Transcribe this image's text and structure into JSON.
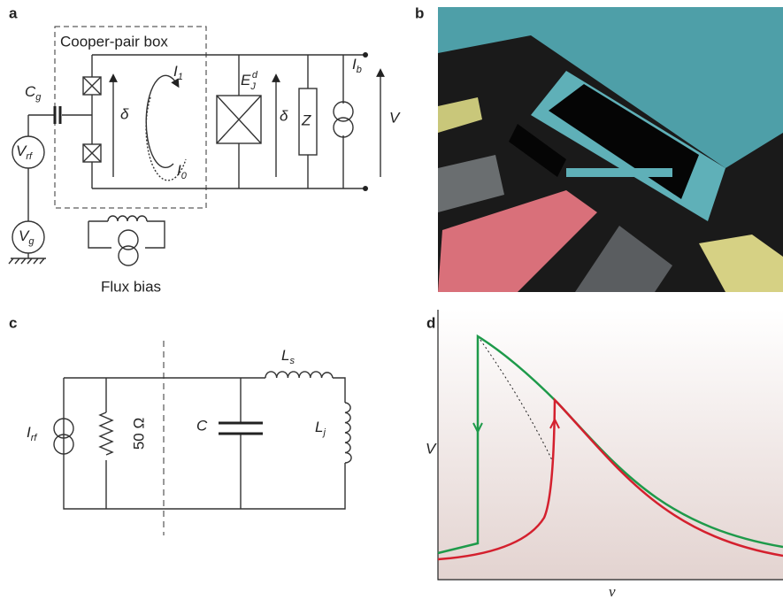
{
  "panels": {
    "a": {
      "label": "a",
      "box_title": "Cooper-pair box",
      "cg": {
        "base": "C",
        "sub": "g"
      },
      "vrf": {
        "base": "V",
        "sub": "rf"
      },
      "vg": {
        "base": "V",
        "sub": "g"
      },
      "delta_box": "δ",
      "i1": {
        "base": "I",
        "sub": "1"
      },
      "i0": {
        "base": "I",
        "sub": "0"
      },
      "ejd": {
        "base": "E",
        "sub": "J",
        "sup": "d"
      },
      "delta": "δ",
      "z": "Z",
      "ib": {
        "base": "I",
        "sub": "b"
      },
      "v": "V",
      "flux": "Flux bias"
    },
    "b": {
      "label": "b"
    },
    "c": {
      "label": "c",
      "irf": {
        "base": "I",
        "sub": "rf"
      },
      "r": "50 Ω",
      "cap": "C",
      "ls": {
        "base": "L",
        "sub": "s"
      },
      "lj": {
        "base": "L",
        "sub": "j"
      }
    },
    "d": {
      "label": "d",
      "y_label": "V",
      "x_label": "ν"
    }
  }
}
